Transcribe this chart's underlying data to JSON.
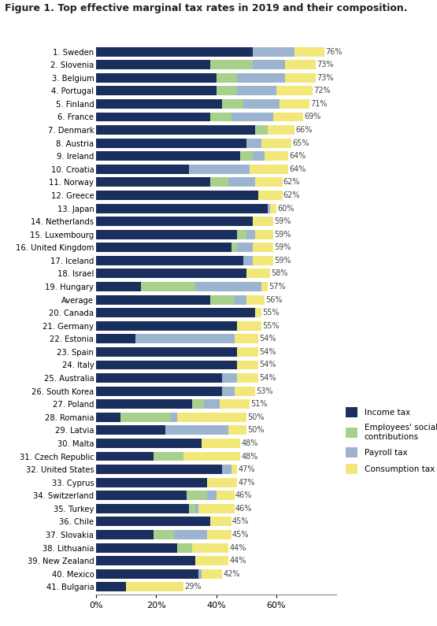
{
  "title": "Figure 1. Top effective marginal tax rates in 2019 and their composition.",
  "countries": [
    "1. Sweden",
    "2. Slovenia",
    "3. Belgium",
    "4. Portugal",
    "5. Finland",
    "6. France",
    "7. Denmark",
    "8. Austria",
    "9. Ireland",
    "10. Croatia",
    "11. Norway",
    "12. Greece",
    "13. Japan",
    "14. Netherlands",
    "15. Luxembourg",
    "16. United Kingdom",
    "17. Iceland",
    "18. Israel",
    "19. Hungary",
    "Average",
    "20. Canada",
    "21. Germany",
    "22. Estonia",
    "23. Spain",
    "24. Italy",
    "25. Australia",
    "26. South Korea",
    "27. Poland",
    "28. Romania",
    "29. Latvia",
    "30. Malta",
    "31. Czech Republic",
    "32. United States",
    "33. Cyprus",
    "34. Switzerland",
    "35. Turkey",
    "36. Chile",
    "37. Slovakia",
    "38. Lithuania",
    "39. New Zealand",
    "40. Mexico",
    "41. Bulgaria"
  ],
  "totals": [
    76,
    73,
    73,
    72,
    71,
    69,
    66,
    65,
    64,
    64,
    62,
    62,
    60,
    59,
    59,
    59,
    59,
    58,
    57,
    56,
    55,
    55,
    54,
    54,
    54,
    54,
    53,
    51,
    50,
    50,
    48,
    48,
    47,
    47,
    46,
    46,
    45,
    45,
    44,
    44,
    42,
    29
  ],
  "income_tax": [
    52,
    38,
    40,
    40,
    42,
    38,
    53,
    50,
    48,
    31,
    38,
    54,
    57,
    52,
    47,
    45,
    49,
    50,
    15,
    38,
    53,
    47,
    13,
    47,
    47,
    42,
    42,
    32,
    8,
    23,
    35,
    19,
    42,
    37,
    30,
    31,
    38,
    19,
    27,
    33,
    34,
    10
  ],
  "employees_social": [
    0,
    14,
    7,
    7,
    7,
    7,
    4,
    0,
    4,
    0,
    6,
    0,
    0,
    0,
    3,
    2,
    0,
    0,
    18,
    8,
    0,
    0,
    0,
    0,
    0,
    0,
    0,
    4,
    17,
    0,
    0,
    10,
    0,
    0,
    7,
    2,
    0,
    7,
    5,
    0,
    0,
    0
  ],
  "payroll_tax": [
    14,
    11,
    16,
    13,
    12,
    14,
    0,
    5,
    4,
    20,
    9,
    0,
    1,
    0,
    3,
    5,
    3,
    0,
    22,
    4,
    0,
    0,
    33,
    0,
    0,
    5,
    4,
    5,
    2,
    21,
    0,
    0,
    3,
    0,
    3,
    1,
    0,
    11,
    0,
    0,
    1,
    0
  ],
  "consumption_tax": [
    10,
    10,
    10,
    12,
    10,
    10,
    9,
    10,
    8,
    13,
    9,
    8,
    2,
    7,
    6,
    7,
    7,
    8,
    2,
    6,
    2,
    8,
    8,
    7,
    7,
    7,
    7,
    10,
    23,
    6,
    13,
    19,
    2,
    10,
    6,
    12,
    7,
    8,
    12,
    11,
    7,
    19
  ],
  "colors": {
    "income_tax": "#1b2f5e",
    "employees_social": "#a8d08d",
    "payroll_tax": "#9db4d0",
    "consumption_tax": "#f2e87a"
  },
  "legend_labels": [
    "Income tax",
    "Employees' social\ncontributions",
    "Payroll tax",
    "Consumption tax"
  ],
  "xlabel_ticks": [
    0,
    20,
    40,
    60
  ],
  "xlabel_labels": [
    "0%",
    "20%",
    "40%",
    "60%"
  ],
  "background_color": "#ffffff"
}
